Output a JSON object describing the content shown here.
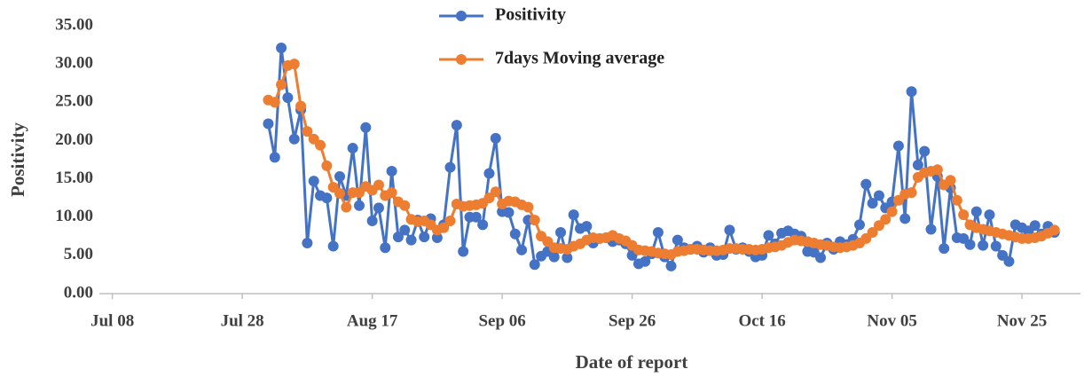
{
  "chart_data": {
    "type": "line",
    "y_label": "Positivity",
    "x_label": "Date of report",
    "x": [
      "Aug 01",
      "Aug 02",
      "Aug 03",
      "Aug 04",
      "Aug 05",
      "Aug 06",
      "Aug 07",
      "Aug 08",
      "Aug 09",
      "Aug 10",
      "Aug 11",
      "Aug 12",
      "Aug 13",
      "Aug 14",
      "Aug 15",
      "Aug 16",
      "Aug 17",
      "Aug 18",
      "Aug 19",
      "Aug 20",
      "Aug 21",
      "Aug 22",
      "Aug 23",
      "Aug 24",
      "Aug 25",
      "Aug 26",
      "Aug 27",
      "Aug 28",
      "Aug 29",
      "Aug 30",
      "Aug 31",
      "Sep 01",
      "Sep 02",
      "Sep 03",
      "Sep 04",
      "Sep 05",
      "Sep 06",
      "Sep 07",
      "Sep 08",
      "Sep 09",
      "Sep 10",
      "Sep 11",
      "Sep 12",
      "Sep 13",
      "Sep 14",
      "Sep 15",
      "Sep 16",
      "Sep 17",
      "Sep 18",
      "Sep 19",
      "Sep 20",
      "Sep 21",
      "Sep 22",
      "Sep 23",
      "Sep 24",
      "Sep 25",
      "Sep 26",
      "Sep 27",
      "Sep 28",
      "Sep 29",
      "Sep 30",
      "Oct 01",
      "Oct 02",
      "Oct 03",
      "Oct 04",
      "Oct 05",
      "Oct 06",
      "Oct 07",
      "Oct 08",
      "Oct 09",
      "Oct 10",
      "Oct 11",
      "Oct 12",
      "Oct 13",
      "Oct 14",
      "Oct 15",
      "Oct 16",
      "Oct 17",
      "Oct 18",
      "Oct 19",
      "Oct 20",
      "Oct 21",
      "Oct 22",
      "Oct 23",
      "Oct 24",
      "Oct 25",
      "Oct 26",
      "Oct 27",
      "Oct 28",
      "Oct 29",
      "Oct 30",
      "Oct 31",
      "Nov 01",
      "Nov 02",
      "Nov 03",
      "Nov 04",
      "Nov 05",
      "Nov 06",
      "Nov 07",
      "Nov 08",
      "Nov 09",
      "Nov 10",
      "Nov 11",
      "Nov 12",
      "Nov 13",
      "Nov 14",
      "Nov 15",
      "Nov 16",
      "Nov 17",
      "Nov 18",
      "Nov 19",
      "Nov 20",
      "Nov 21",
      "Nov 22",
      "Nov 23",
      "Nov 24",
      "Nov 25",
      "Nov 26",
      "Nov 27",
      "Nov 28",
      "Nov 29",
      "Nov 30"
    ],
    "series": [
      {
        "name": "Positivity",
        "color": "#4472c4",
        "values": [
          22.2,
          17.8,
          32.1,
          25.6,
          20.2,
          24,
          6.6,
          14.7,
          12.8,
          12.5,
          6.2,
          15.3,
          12.8,
          19,
          11.5,
          21.7,
          9.5,
          11.2,
          6,
          16,
          7.4,
          8.3,
          7,
          9.6,
          7.4,
          9.8,
          7.3,
          9,
          16.5,
          22,
          5.5,
          10,
          10,
          9,
          15.7,
          20.3,
          10.7,
          10.6,
          7.8,
          5.7,
          9.6,
          3.8,
          4.9,
          5.5,
          4.8,
          8,
          4.7,
          10.3,
          8.5,
          8.8,
          6.6,
          7.2,
          7.3,
          6.8,
          7,
          6.5,
          5,
          3.9,
          4.2,
          5.2,
          8,
          4.8,
          3.6,
          7,
          6,
          5.8,
          6.2,
          5.4,
          6,
          5,
          5.1,
          8.3,
          5.8,
          6,
          5.5,
          4.8,
          5,
          7.6,
          6.5,
          7.9,
          8.2,
          7.8,
          7.5,
          5.5,
          5.4,
          4.7,
          6.6,
          5.8,
          6.8,
          6.4,
          7.1,
          9,
          14.3,
          11.8,
          12.8,
          11.2,
          12,
          19.3,
          9.8,
          26.4,
          16.8,
          18.6,
          8.4,
          15.3,
          5.9,
          13.8,
          7.3,
          7.2,
          6.4,
          10.7,
          6.3,
          10.3,
          6.2,
          5,
          4.2,
          9,
          8.6,
          8.2,
          8.9,
          7.8,
          8.8,
          8
        ]
      },
      {
        "name": "7days Moving average",
        "color": "#ed7d31",
        "values": [
          25.3,
          25,
          27.3,
          29.8,
          30,
          24.5,
          21.2,
          20.2,
          19.4,
          16.7,
          13.9,
          13.1,
          11.3,
          13.2,
          13.2,
          14,
          13.5,
          14.2,
          12.8,
          13.2,
          12,
          11.5,
          9.7,
          9.4,
          9.5,
          9,
          8.3,
          8.6,
          9.5,
          11.7,
          11.4,
          11.5,
          11.6,
          11.8,
          12.5,
          13.3,
          11.7,
          12.1,
          12,
          11.6,
          11.3,
          9.6,
          7.5,
          6.8,
          6,
          5.9,
          5.8,
          6.2,
          6.5,
          7,
          7.3,
          7.2,
          7.3,
          7.6,
          7.2,
          6.9,
          6.3,
          5.7,
          5.6,
          5.5,
          5.3,
          5.2,
          5.1,
          5.5,
          5.6,
          5.8,
          5.8,
          5.7,
          5.6,
          5.6,
          5.7,
          5.9,
          5.9,
          5.8,
          5.8,
          5.7,
          5.8,
          6,
          6.1,
          6.3,
          6.7,
          7,
          6.9,
          6.8,
          6.6,
          6.4,
          6.3,
          6.1,
          6,
          6.1,
          6.3,
          6.6,
          7.2,
          8,
          8.9,
          9.7,
          10.7,
          12.2,
          13,
          13.2,
          15.2,
          15.8,
          16,
          16.2,
          14.2,
          14.8,
          12.2,
          10.3,
          9,
          8.6,
          8.4,
          8.2,
          8,
          7.8,
          7.6,
          7.4,
          7.2,
          7.2,
          7.3,
          7.5,
          7.9,
          8.3
        ]
      }
    ],
    "xlim": [
      "Jul 06",
      "Dec 04"
    ],
    "xticks": [
      "Jul 08",
      "Jul 28",
      "Aug 17",
      "Sep 06",
      "Sep 26",
      "Oct 16",
      "Nov 05",
      "Nov 25"
    ],
    "ylim": [
      0,
      35
    ],
    "yticks": [
      {
        "value": 0,
        "label": "0.00"
      },
      {
        "value": 5,
        "label": "5.00"
      },
      {
        "value": 10,
        "label": "10.00"
      },
      {
        "value": 15,
        "label": "15.00"
      },
      {
        "value": 20,
        "label": "20.00"
      },
      {
        "value": 25,
        "label": "25.00"
      },
      {
        "value": 30,
        "label": "30.00"
      },
      {
        "value": 35,
        "label": "35.00"
      }
    ],
    "grid": false,
    "legend": "top"
  }
}
